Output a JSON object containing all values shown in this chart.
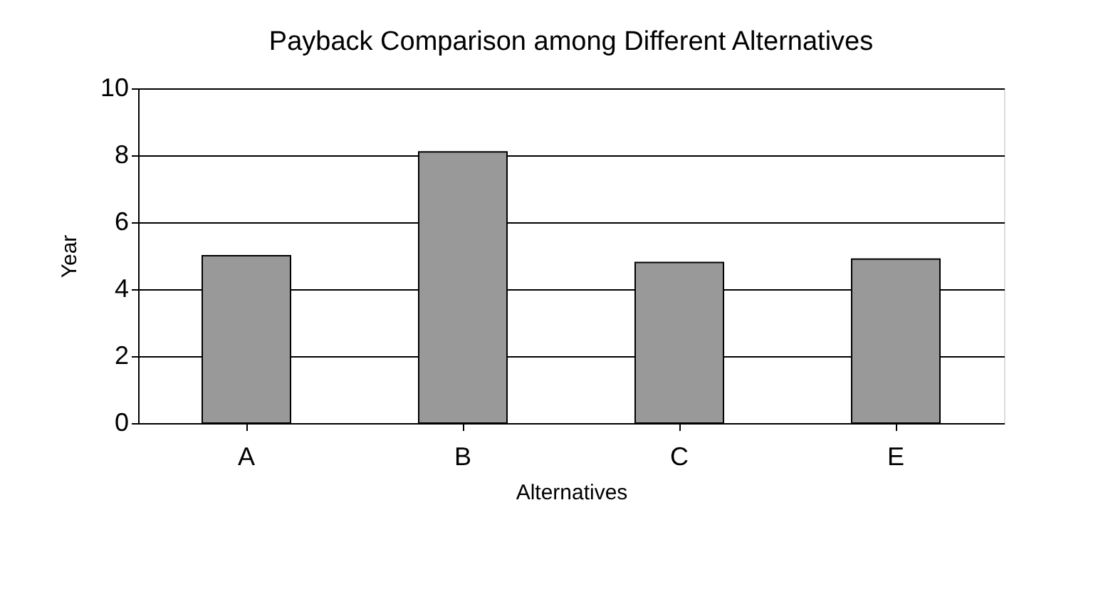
{
  "chart_data": {
    "type": "bar",
    "title": "Payback Comparison among Different Alternatives",
    "xlabel": "Alternatives",
    "ylabel": "Year",
    "categories": [
      "A",
      "B",
      "C",
      "E"
    ],
    "values": [
      5.0,
      8.1,
      4.8,
      4.9
    ],
    "color": "#999999",
    "ylim": [
      0,
      10
    ],
    "yticks": [
      0,
      2,
      4,
      6,
      8,
      10
    ],
    "grid": "y"
  }
}
